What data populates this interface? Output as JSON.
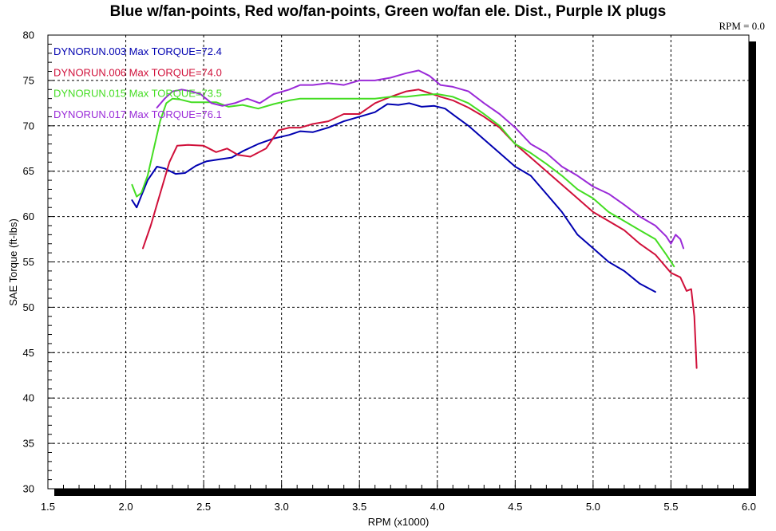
{
  "chart_data": {
    "type": "line",
    "title": "Blue w/fan-points, Red wo/fan-points, Green wo/fan ele. Dist., Purple IX plugs",
    "rpm_readout": "RPM = 0.0",
    "xlabel": "RPM (x1000)",
    "ylabel": "SAE Torque (ft-lbs)",
    "xlim": [
      1.5,
      6.0
    ],
    "ylim": [
      30,
      80
    ],
    "x_ticks": [
      1.5,
      2.0,
      2.5,
      3.0,
      3.5,
      4.0,
      4.5,
      5.0,
      5.5,
      6.0
    ],
    "x_tick_labels": [
      "1.5",
      "2.0",
      "2.5",
      "3.0",
      "3.5",
      "4.0",
      "4.5",
      "5.0",
      "5.5",
      "6.0"
    ],
    "y_ticks": [
      30,
      35,
      40,
      45,
      50,
      55,
      60,
      65,
      70,
      75,
      80
    ],
    "y_tick_labels": [
      "30",
      "35",
      "40",
      "45",
      "50",
      "55",
      "60",
      "65",
      "70",
      "75",
      "80"
    ],
    "grid": true,
    "legend_position": "top-left",
    "series": [
      {
        "name": "DYNORUN.003",
        "label": "DYNORUN.003  Max TORQUE=72.4",
        "color": "#0000b0",
        "x": [
          2.04,
          2.07,
          2.1,
          2.14,
          2.2,
          2.25,
          2.32,
          2.38,
          2.45,
          2.52,
          2.6,
          2.68,
          2.75,
          2.85,
          2.95,
          3.05,
          3.12,
          3.2,
          3.3,
          3.4,
          3.5,
          3.6,
          3.68,
          3.75,
          3.82,
          3.9,
          3.98,
          4.05,
          4.12,
          4.2,
          4.3,
          4.4,
          4.5,
          4.6,
          4.7,
          4.8,
          4.9,
          5.0,
          5.1,
          5.2,
          5.3,
          5.4
        ],
        "y": [
          61.8,
          61.0,
          62.3,
          64.0,
          65.5,
          65.3,
          64.7,
          64.8,
          65.6,
          66.1,
          66.3,
          66.5,
          67.2,
          68.0,
          68.6,
          69.0,
          69.4,
          69.3,
          69.8,
          70.5,
          71.0,
          71.5,
          72.4,
          72.3,
          72.5,
          72.1,
          72.2,
          71.9,
          71.0,
          70.0,
          68.5,
          67.0,
          65.5,
          64.5,
          62.5,
          60.5,
          58.0,
          56.5,
          55.0,
          54.0,
          52.6,
          51.7
        ]
      },
      {
        "name": "DYNORUN.006",
        "label": "DYNORUN.006  Max TORQUE=74.0",
        "color": "#d0103a",
        "x": [
          2.11,
          2.16,
          2.22,
          2.28,
          2.33,
          2.4,
          2.5,
          2.58,
          2.65,
          2.72,
          2.8,
          2.9,
          2.98,
          3.05,
          3.12,
          3.2,
          3.3,
          3.4,
          3.5,
          3.6,
          3.7,
          3.8,
          3.88,
          3.95,
          4.02,
          4.1,
          4.2,
          4.3,
          4.4,
          4.5,
          4.6,
          4.7,
          4.8,
          4.9,
          5.0,
          5.1,
          5.2,
          5.3,
          5.4,
          5.5,
          5.56,
          5.6,
          5.63,
          5.65,
          5.665
        ],
        "y": [
          56.5,
          59.0,
          62.5,
          66.0,
          67.8,
          67.9,
          67.8,
          67.1,
          67.5,
          66.8,
          66.6,
          67.5,
          69.5,
          69.8,
          69.8,
          70.2,
          70.5,
          71.3,
          71.3,
          72.5,
          73.2,
          73.8,
          74.0,
          73.6,
          73.2,
          72.8,
          72.0,
          71.0,
          69.8,
          68.0,
          66.5,
          65.0,
          63.5,
          62.0,
          60.5,
          59.5,
          58.5,
          57.0,
          55.8,
          53.8,
          53.3,
          51.8,
          52.0,
          49.0,
          43.3
        ]
      },
      {
        "name": "DYNORUN.015",
        "label": "DYNORUN.015  Max TORQUE=73.5",
        "color": "#44dd22",
        "x": [
          2.04,
          2.07,
          2.1,
          2.14,
          2.18,
          2.22,
          2.26,
          2.3,
          2.35,
          2.42,
          2.5,
          2.58,
          2.66,
          2.75,
          2.85,
          2.95,
          3.05,
          3.12,
          3.2,
          3.3,
          3.4,
          3.5,
          3.6,
          3.7,
          3.8,
          3.9,
          4.0,
          4.1,
          4.2,
          4.3,
          4.4,
          4.5,
          4.6,
          4.7,
          4.8,
          4.9,
          5.0,
          5.1,
          5.2,
          5.3,
          5.4,
          5.47,
          5.52
        ],
        "y": [
          63.5,
          62.2,
          62.6,
          64.5,
          67.5,
          70.5,
          72.5,
          73.0,
          72.9,
          72.6,
          72.6,
          72.6,
          72.1,
          72.3,
          71.9,
          72.4,
          72.8,
          73.0,
          73.0,
          73.0,
          73.0,
          73.0,
          73.0,
          73.2,
          73.2,
          73.4,
          73.5,
          73.2,
          72.5,
          71.3,
          70.0,
          68.0,
          67.0,
          65.8,
          64.5,
          63.0,
          62.0,
          60.5,
          59.5,
          58.5,
          57.5,
          55.8,
          54.5
        ]
      },
      {
        "name": "DYNORUN.017",
        "label": "DYNORUN.017  Max TORQUE=76.1",
        "color": "#9a2ad8",
        "x": [
          2.2,
          2.25,
          2.3,
          2.36,
          2.42,
          2.48,
          2.55,
          2.62,
          2.7,
          2.78,
          2.86,
          2.95,
          3.05,
          3.12,
          3.2,
          3.3,
          3.4,
          3.5,
          3.6,
          3.7,
          3.8,
          3.88,
          3.95,
          4.02,
          4.1,
          4.2,
          4.3,
          4.4,
          4.5,
          4.6,
          4.7,
          4.8,
          4.9,
          5.0,
          5.1,
          5.2,
          5.3,
          5.4,
          5.47,
          5.5,
          5.53,
          5.56,
          5.58
        ],
        "y": [
          72.0,
          73.0,
          73.8,
          74.0,
          73.8,
          73.5,
          72.5,
          72.2,
          72.5,
          73.0,
          72.5,
          73.5,
          74.0,
          74.5,
          74.5,
          74.7,
          74.5,
          75.0,
          75.0,
          75.3,
          75.8,
          76.1,
          75.5,
          74.5,
          74.3,
          73.8,
          72.5,
          71.3,
          69.8,
          68.0,
          67.0,
          65.5,
          64.5,
          63.3,
          62.5,
          61.3,
          60.0,
          59.0,
          57.8,
          57.0,
          58.0,
          57.5,
          56.5
        ]
      }
    ]
  }
}
